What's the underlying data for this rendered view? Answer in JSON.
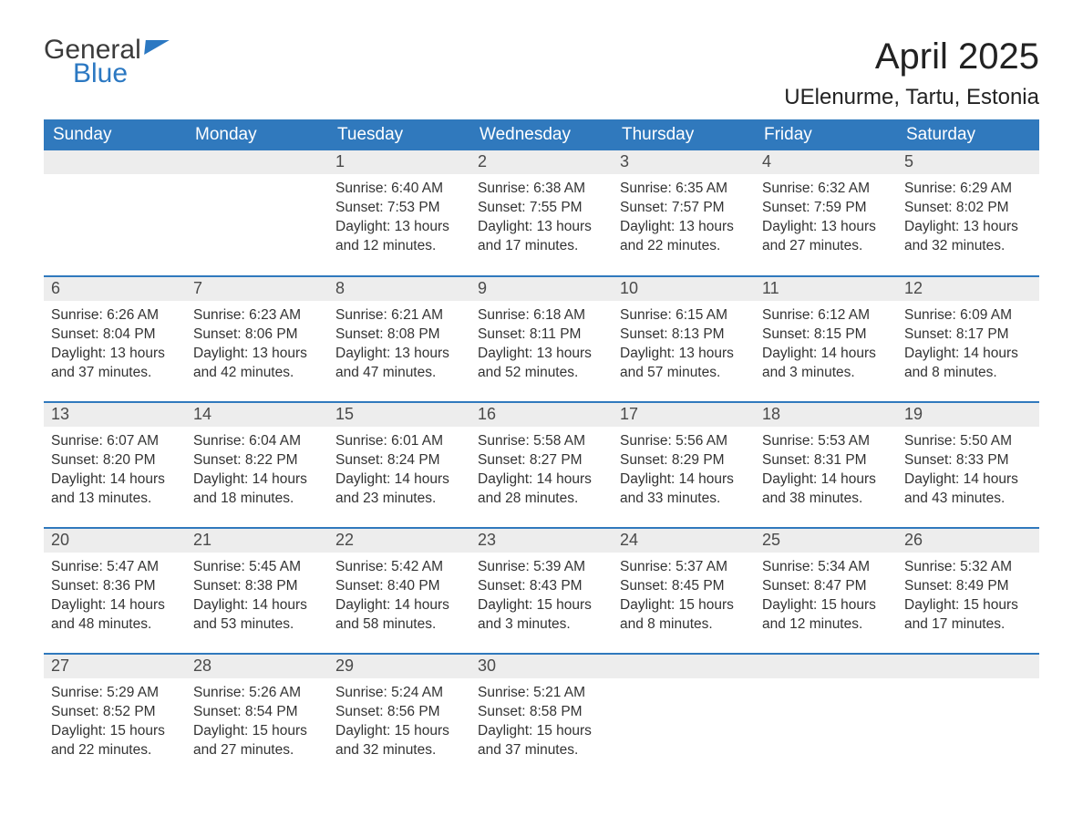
{
  "logo": {
    "word1": "General",
    "word2": "Blue"
  },
  "title": "April 2025",
  "location": "UElenurme, Tartu, Estonia",
  "colors": {
    "header_bg": "#3079bd",
    "header_text": "#ffffff",
    "daynum_bg": "#ededed",
    "week_border": "#3079bd",
    "text": "#333333",
    "logo_blue": "#2b78c2"
  },
  "day_names": [
    "Sunday",
    "Monday",
    "Tuesday",
    "Wednesday",
    "Thursday",
    "Friday",
    "Saturday"
  ],
  "weeks": [
    [
      {
        "n": "",
        "sunrise": "",
        "sunset": "",
        "daylight": ""
      },
      {
        "n": "",
        "sunrise": "",
        "sunset": "",
        "daylight": ""
      },
      {
        "n": "1",
        "sunrise": "Sunrise: 6:40 AM",
        "sunset": "Sunset: 7:53 PM",
        "daylight": "Daylight: 13 hours and 12 minutes."
      },
      {
        "n": "2",
        "sunrise": "Sunrise: 6:38 AM",
        "sunset": "Sunset: 7:55 PM",
        "daylight": "Daylight: 13 hours and 17 minutes."
      },
      {
        "n": "3",
        "sunrise": "Sunrise: 6:35 AM",
        "sunset": "Sunset: 7:57 PM",
        "daylight": "Daylight: 13 hours and 22 minutes."
      },
      {
        "n": "4",
        "sunrise": "Sunrise: 6:32 AM",
        "sunset": "Sunset: 7:59 PM",
        "daylight": "Daylight: 13 hours and 27 minutes."
      },
      {
        "n": "5",
        "sunrise": "Sunrise: 6:29 AM",
        "sunset": "Sunset: 8:02 PM",
        "daylight": "Daylight: 13 hours and 32 minutes."
      }
    ],
    [
      {
        "n": "6",
        "sunrise": "Sunrise: 6:26 AM",
        "sunset": "Sunset: 8:04 PM",
        "daylight": "Daylight: 13 hours and 37 minutes."
      },
      {
        "n": "7",
        "sunrise": "Sunrise: 6:23 AM",
        "sunset": "Sunset: 8:06 PM",
        "daylight": "Daylight: 13 hours and 42 minutes."
      },
      {
        "n": "8",
        "sunrise": "Sunrise: 6:21 AM",
        "sunset": "Sunset: 8:08 PM",
        "daylight": "Daylight: 13 hours and 47 minutes."
      },
      {
        "n": "9",
        "sunrise": "Sunrise: 6:18 AM",
        "sunset": "Sunset: 8:11 PM",
        "daylight": "Daylight: 13 hours and 52 minutes."
      },
      {
        "n": "10",
        "sunrise": "Sunrise: 6:15 AM",
        "sunset": "Sunset: 8:13 PM",
        "daylight": "Daylight: 13 hours and 57 minutes."
      },
      {
        "n": "11",
        "sunrise": "Sunrise: 6:12 AM",
        "sunset": "Sunset: 8:15 PM",
        "daylight": "Daylight: 14 hours and 3 minutes."
      },
      {
        "n": "12",
        "sunrise": "Sunrise: 6:09 AM",
        "sunset": "Sunset: 8:17 PM",
        "daylight": "Daylight: 14 hours and 8 minutes."
      }
    ],
    [
      {
        "n": "13",
        "sunrise": "Sunrise: 6:07 AM",
        "sunset": "Sunset: 8:20 PM",
        "daylight": "Daylight: 14 hours and 13 minutes."
      },
      {
        "n": "14",
        "sunrise": "Sunrise: 6:04 AM",
        "sunset": "Sunset: 8:22 PM",
        "daylight": "Daylight: 14 hours and 18 minutes."
      },
      {
        "n": "15",
        "sunrise": "Sunrise: 6:01 AM",
        "sunset": "Sunset: 8:24 PM",
        "daylight": "Daylight: 14 hours and 23 minutes."
      },
      {
        "n": "16",
        "sunrise": "Sunrise: 5:58 AM",
        "sunset": "Sunset: 8:27 PM",
        "daylight": "Daylight: 14 hours and 28 minutes."
      },
      {
        "n": "17",
        "sunrise": "Sunrise: 5:56 AM",
        "sunset": "Sunset: 8:29 PM",
        "daylight": "Daylight: 14 hours and 33 minutes."
      },
      {
        "n": "18",
        "sunrise": "Sunrise: 5:53 AM",
        "sunset": "Sunset: 8:31 PM",
        "daylight": "Daylight: 14 hours and 38 minutes."
      },
      {
        "n": "19",
        "sunrise": "Sunrise: 5:50 AM",
        "sunset": "Sunset: 8:33 PM",
        "daylight": "Daylight: 14 hours and 43 minutes."
      }
    ],
    [
      {
        "n": "20",
        "sunrise": "Sunrise: 5:47 AM",
        "sunset": "Sunset: 8:36 PM",
        "daylight": "Daylight: 14 hours and 48 minutes."
      },
      {
        "n": "21",
        "sunrise": "Sunrise: 5:45 AM",
        "sunset": "Sunset: 8:38 PM",
        "daylight": "Daylight: 14 hours and 53 minutes."
      },
      {
        "n": "22",
        "sunrise": "Sunrise: 5:42 AM",
        "sunset": "Sunset: 8:40 PM",
        "daylight": "Daylight: 14 hours and 58 minutes."
      },
      {
        "n": "23",
        "sunrise": "Sunrise: 5:39 AM",
        "sunset": "Sunset: 8:43 PM",
        "daylight": "Daylight: 15 hours and 3 minutes."
      },
      {
        "n": "24",
        "sunrise": "Sunrise: 5:37 AM",
        "sunset": "Sunset: 8:45 PM",
        "daylight": "Daylight: 15 hours and 8 minutes."
      },
      {
        "n": "25",
        "sunrise": "Sunrise: 5:34 AM",
        "sunset": "Sunset: 8:47 PM",
        "daylight": "Daylight: 15 hours and 12 minutes."
      },
      {
        "n": "26",
        "sunrise": "Sunrise: 5:32 AM",
        "sunset": "Sunset: 8:49 PM",
        "daylight": "Daylight: 15 hours and 17 minutes."
      }
    ],
    [
      {
        "n": "27",
        "sunrise": "Sunrise: 5:29 AM",
        "sunset": "Sunset: 8:52 PM",
        "daylight": "Daylight: 15 hours and 22 minutes."
      },
      {
        "n": "28",
        "sunrise": "Sunrise: 5:26 AM",
        "sunset": "Sunset: 8:54 PM",
        "daylight": "Daylight: 15 hours and 27 minutes."
      },
      {
        "n": "29",
        "sunrise": "Sunrise: 5:24 AM",
        "sunset": "Sunset: 8:56 PM",
        "daylight": "Daylight: 15 hours and 32 minutes."
      },
      {
        "n": "30",
        "sunrise": "Sunrise: 5:21 AM",
        "sunset": "Sunset: 8:58 PM",
        "daylight": "Daylight: 15 hours and 37 minutes."
      },
      {
        "n": "",
        "sunrise": "",
        "sunset": "",
        "daylight": ""
      },
      {
        "n": "",
        "sunrise": "",
        "sunset": "",
        "daylight": ""
      },
      {
        "n": "",
        "sunrise": "",
        "sunset": "",
        "daylight": ""
      }
    ]
  ]
}
